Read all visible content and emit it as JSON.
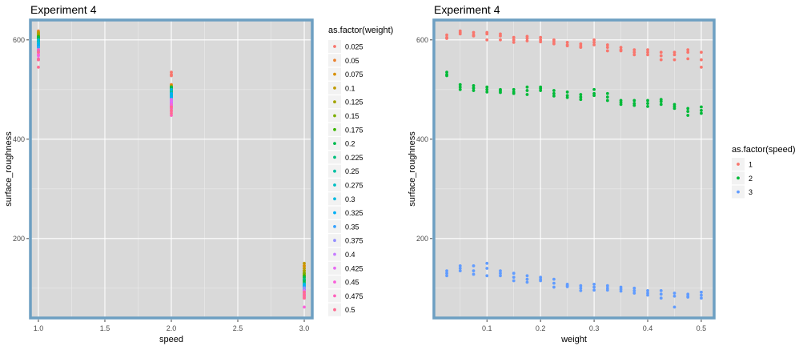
{
  "panels": [
    {
      "title": "Experiment 4",
      "xlabel": "speed",
      "ylabel": "surface_roughness",
      "legend_title": "as.factor(weight)"
    },
    {
      "title": "Experiment 4",
      "xlabel": "weight",
      "ylabel": "surface_roughness",
      "legend_title": "as.factor(speed)"
    }
  ],
  "chart_data": [
    {
      "type": "scatter",
      "title": "Experiment 4",
      "xlabel": "speed",
      "ylabel": "surface_roughness",
      "x_ticks": [
        "1.0",
        "1.5",
        "2.0",
        "2.5",
        "3.0"
      ],
      "y_ticks": [
        "200",
        "400",
        "600"
      ],
      "xlim": [
        0.94,
        3.06
      ],
      "ylim": [
        40,
        640
      ],
      "grid": true,
      "panel_background": "#d9d9d9",
      "panel_border": "#6d9fc2",
      "legend": "right",
      "legend_title": "as.factor(weight)",
      "color_by": "weight",
      "categories": [
        "0.025",
        "0.05",
        "0.075",
        "0.1",
        "0.125",
        "0.15",
        "0.175",
        "0.2",
        "0.225",
        "0.25",
        "0.275",
        "0.3",
        "0.325",
        "0.35",
        "0.375",
        "0.4",
        "0.425",
        "0.45",
        "0.475",
        "0.5"
      ],
      "colors": [
        "#F8766D",
        "#EA8331",
        "#D89000",
        "#C09B00",
        "#A3A500",
        "#7CAE00",
        "#39B600",
        "#00BB4E",
        "#00BF7D",
        "#00C1A3",
        "#00BFC4",
        "#00BAE0",
        "#00B0F6",
        "#35A2FF",
        "#9590FF",
        "#C77CFF",
        "#E76BF3",
        "#FA62DB",
        "#FF62BC",
        "#FF6C91"
      ],
      "series": [
        {
          "speed": 1,
          "values": [
            [
              610,
              605,
              603
            ],
            [
              618,
              615,
              612
            ],
            [
              615,
              610,
              608
            ],
            [
              615,
              612,
              600
            ],
            [
              612,
              608,
              600
            ],
            [
              605,
              600,
              595
            ],
            [
              607,
              603,
              598
            ],
            [
              605,
              600,
              596
            ],
            [
              600,
              596,
              592
            ],
            [
              595,
              590,
              588
            ],
            [
              592,
              588,
              585
            ],
            [
              600,
              595,
              590
            ],
            [
              590,
              585,
              578
            ],
            [
              585,
              580,
              578
            ],
            [
              580,
              575,
              570
            ],
            [
              580,
              575,
              570
            ],
            [
              575,
              568,
              560
            ],
            [
              575,
              570,
              560
            ],
            [
              580,
              575,
              562
            ],
            [
              575,
              560,
              545
            ]
          ]
        },
        {
          "speed": 2,
          "values": [
            [
              535,
              530,
              528
            ],
            [
              510,
              505,
              500
            ],
            [
              508,
              503,
              498
            ],
            [
              505,
              500,
              495
            ],
            [
              500,
              497,
              494
            ],
            [
              500,
              495,
              492
            ],
            [
              505,
              498,
              490
            ],
            [
              505,
              502,
              498
            ],
            [
              498,
              492,
              487
            ],
            [
              495,
              488,
              484
            ],
            [
              490,
              485,
              480
            ],
            [
              500,
              492,
              488
            ],
            [
              492,
              485,
              478
            ],
            [
              478,
              474,
              470
            ],
            [
              478,
              472,
              468
            ],
            [
              478,
              472,
              466
            ],
            [
              480,
              476,
              470
            ],
            [
              470,
              466,
              462
            ],
            [
              462,
              456,
              448
            ],
            [
              465,
              458,
              452
            ]
          ]
        },
        {
          "speed": 3,
          "values": [
            [
              135,
              130,
              125
            ],
            [
              145,
              140,
              135
            ],
            [
              145,
              135,
              128
            ],
            [
              150,
              140,
              125
            ],
            [
              135,
              130,
              125
            ],
            [
              130,
              122,
              115
            ],
            [
              125,
              118,
              112
            ],
            [
              122,
              118,
              115
            ],
            [
              118,
              110,
              102
            ],
            [
              108,
              105,
              103
            ],
            [
              105,
              100,
              95
            ],
            [
              108,
              102,
              96
            ],
            [
              105,
              100,
              96
            ],
            [
              102,
              98,
              94
            ],
            [
              100,
              95,
              90
            ],
            [
              95,
              90,
              86
            ],
            [
              95,
              88,
              80
            ],
            [
              90,
              84,
              62
            ],
            [
              88,
              84,
              82
            ],
            [
              92,
              86,
              80
            ]
          ]
        }
      ]
    },
    {
      "type": "scatter",
      "title": "Experiment 4",
      "xlabel": "weight",
      "ylabel": "surface_roughness",
      "x_ticks": [
        "0.1",
        "0.2",
        "0.3",
        "0.4",
        "0.5"
      ],
      "y_ticks": [
        "200",
        "400",
        "600"
      ],
      "xlim": [
        0.001,
        0.524
      ],
      "ylim": [
        40,
        640
      ],
      "grid": true,
      "panel_background": "#d9d9d9",
      "panel_border": "#6d9fc2",
      "legend": "right",
      "legend_title": "as.factor(speed)",
      "color_by": "speed",
      "categories": [
        "1",
        "2",
        "3"
      ],
      "colors": [
        "#F8766D",
        "#00BA38",
        "#619CFF"
      ]
    }
  ]
}
